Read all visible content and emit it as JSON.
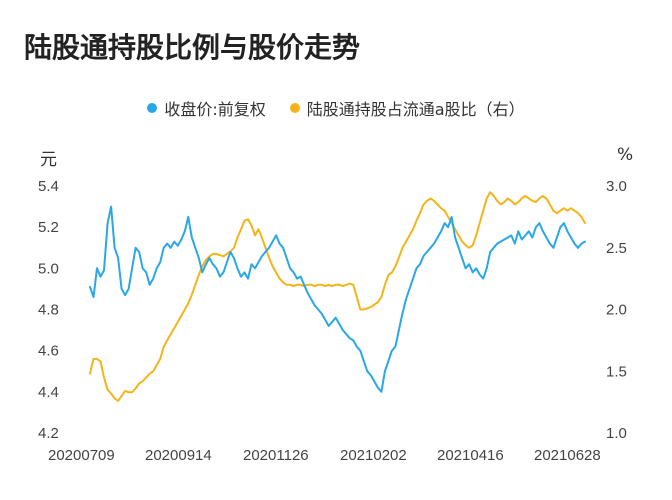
{
  "chart_data": {
    "type": "line",
    "title": "陆股通持股比例与股价走势",
    "x_tick_labels": [
      "20200709",
      "20200914",
      "20201126",
      "20210202",
      "20210416",
      "20210628"
    ],
    "y_left": {
      "unit": "元",
      "ticks": [
        4.2,
        4.4,
        4.6,
        4.8,
        5.0,
        5.2,
        5.4
      ],
      "range": [
        4.2,
        5.4
      ]
    },
    "y_right": {
      "unit": "%",
      "ticks": [
        1.0,
        1.5,
        2.0,
        2.5,
        3.0
      ],
      "range": [
        1.0,
        3.0
      ]
    },
    "legend_placement": "top-center",
    "grid": false,
    "series": [
      {
        "name": "收盘价:前复权",
        "axis": "left",
        "color": "#2aa7e6",
        "values": [
          4.91,
          4.86,
          5.0,
          4.96,
          4.99,
          5.22,
          5.3,
          5.1,
          5.05,
          4.9,
          4.87,
          4.9,
          5.0,
          5.1,
          5.08,
          5.0,
          4.98,
          4.92,
          4.95,
          5.0,
          5.03,
          5.1,
          5.12,
          5.1,
          5.13,
          5.11,
          5.14,
          5.18,
          5.25,
          5.15,
          5.1,
          5.05,
          4.98,
          5.02,
          5.05,
          5.02,
          5.0,
          4.96,
          4.98,
          5.03,
          5.08,
          5.05,
          5.0,
          4.96,
          4.98,
          4.95,
          5.02,
          5.0,
          5.03,
          5.06,
          5.08,
          5.1,
          5.13,
          5.16,
          5.12,
          5.1,
          5.05,
          5.0,
          4.98,
          4.95,
          4.96,
          4.92,
          4.88,
          4.85,
          4.82,
          4.8,
          4.78,
          4.75,
          4.72,
          4.74,
          4.76,
          4.73,
          4.7,
          4.68,
          4.66,
          4.65,
          4.62,
          4.6,
          4.55,
          4.5,
          4.48,
          4.45,
          4.42,
          4.4,
          4.5,
          4.55,
          4.6,
          4.62,
          4.7,
          4.78,
          4.85,
          4.9,
          4.95,
          5.0,
          5.02,
          5.06,
          5.08,
          5.1,
          5.12,
          5.15,
          5.18,
          5.22,
          5.2,
          5.25,
          5.15,
          5.1,
          5.05,
          5.0,
          5.02,
          4.98,
          5.0,
          4.97,
          4.95,
          5.0,
          5.08,
          5.1,
          5.12,
          5.13,
          5.14,
          5.15,
          5.16,
          5.12,
          5.18,
          5.14,
          5.16,
          5.18,
          5.15,
          5.2,
          5.22,
          5.18,
          5.15,
          5.12,
          5.1,
          5.15,
          5.2,
          5.22,
          5.18,
          5.15,
          5.12,
          5.1,
          5.12,
          5.13
        ]
      },
      {
        "name": "陆股通持股占流通a股比（右）",
        "axis": "right",
        "color": "#f4b41a",
        "values": [
          1.48,
          1.6,
          1.6,
          1.58,
          1.45,
          1.35,
          1.32,
          1.28,
          1.26,
          1.3,
          1.34,
          1.33,
          1.33,
          1.36,
          1.4,
          1.42,
          1.45,
          1.48,
          1.5,
          1.55,
          1.6,
          1.7,
          1.75,
          1.8,
          1.85,
          1.9,
          1.95,
          2.0,
          2.05,
          2.12,
          2.2,
          2.28,
          2.35,
          2.4,
          2.43,
          2.45,
          2.45,
          2.44,
          2.43,
          2.45,
          2.47,
          2.5,
          2.58,
          2.65,
          2.72,
          2.73,
          2.68,
          2.6,
          2.65,
          2.58,
          2.5,
          2.42,
          2.35,
          2.3,
          2.25,
          2.22,
          2.2,
          2.2,
          2.19,
          2.2,
          2.2,
          2.19,
          2.2,
          2.2,
          2.19,
          2.2,
          2.2,
          2.19,
          2.2,
          2.19,
          2.2,
          2.2,
          2.19,
          2.2,
          2.21,
          2.2,
          2.1,
          2.0,
          2.0,
          2.01,
          2.02,
          2.04,
          2.06,
          2.1,
          2.2,
          2.28,
          2.3,
          2.35,
          2.42,
          2.5,
          2.55,
          2.6,
          2.65,
          2.72,
          2.78,
          2.85,
          2.88,
          2.9,
          2.88,
          2.85,
          2.82,
          2.8,
          2.75,
          2.7,
          2.65,
          2.6,
          2.55,
          2.52,
          2.5,
          2.52,
          2.6,
          2.7,
          2.8,
          2.9,
          2.95,
          2.92,
          2.88,
          2.85,
          2.87,
          2.9,
          2.88,
          2.85,
          2.87,
          2.9,
          2.92,
          2.9,
          2.88,
          2.87,
          2.9,
          2.92,
          2.9,
          2.85,
          2.8,
          2.78,
          2.8,
          2.82,
          2.8,
          2.82,
          2.8,
          2.78,
          2.75,
          2.7
        ]
      }
    ]
  }
}
